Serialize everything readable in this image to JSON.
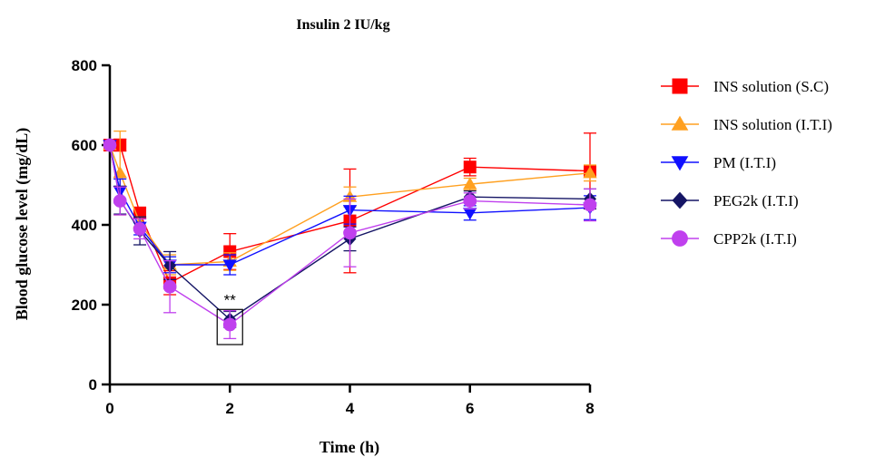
{
  "chart_data": {
    "type": "line",
    "title": "Insulin 2 IU/kg",
    "xlabel": "Time (h)",
    "ylabel": "Blood glucose level (mg/dL)",
    "xlim": [
      0,
      8
    ],
    "ylim": [
      0,
      800
    ],
    "xticks": [
      0,
      2,
      4,
      6,
      8
    ],
    "yticks": [
      0,
      200,
      400,
      600,
      800
    ],
    "grid": false,
    "legend_position": "right",
    "annotation": {
      "text": "**",
      "x": 2
    },
    "series": [
      {
        "name": "INS solution (S.C)",
        "color": "#ff0000",
        "marker": "square",
        "x": [
          0,
          0.17,
          0.5,
          1,
          2,
          4,
          6,
          8
        ],
        "y": [
          600,
          600,
          430,
          255,
          333,
          410,
          545,
          535
        ],
        "err": [
          0,
          15,
          12,
          30,
          45,
          130,
          22,
          95
        ]
      },
      {
        "name": "INS solution (I.T.I)",
        "color": "#ffa020",
        "marker": "triangle-up",
        "x": [
          0,
          0.17,
          0.5,
          1,
          2,
          4,
          6,
          8
        ],
        "y": [
          600,
          530,
          405,
          300,
          308,
          470,
          502,
          530
        ],
        "err": [
          0,
          105,
          15,
          25,
          22,
          25,
          15,
          20
        ]
      },
      {
        "name": "PM (I.T.I)",
        "color": "#1010ff",
        "marker": "triangle-down",
        "x": [
          0,
          0.17,
          0.5,
          1,
          2,
          4,
          6,
          8
        ],
        "y": [
          600,
          485,
          395,
          300,
          300,
          437,
          430,
          443
        ],
        "err": [
          0,
          30,
          20,
          20,
          25,
          35,
          18,
          30
        ]
      },
      {
        "name": "PEG2k (I.T.I)",
        "color": "#151565",
        "marker": "diamond",
        "x": [
          0,
          0.17,
          0.5,
          1,
          2,
          4,
          6,
          8
        ],
        "y": [
          600,
          462,
          385,
          298,
          163,
          365,
          470,
          465
        ],
        "err": [
          0,
          35,
          35,
          35,
          20,
          30,
          15,
          25
        ]
      },
      {
        "name": "CPP2k (I.T.I)",
        "color": "#c040ee",
        "marker": "circle",
        "x": [
          0,
          0.17,
          0.5,
          1,
          2,
          4,
          6,
          8
        ],
        "y": [
          600,
          460,
          390,
          245,
          150,
          380,
          460,
          450
        ],
        "err": [
          0,
          35,
          25,
          65,
          35,
          85,
          20,
          40
        ]
      }
    ]
  }
}
